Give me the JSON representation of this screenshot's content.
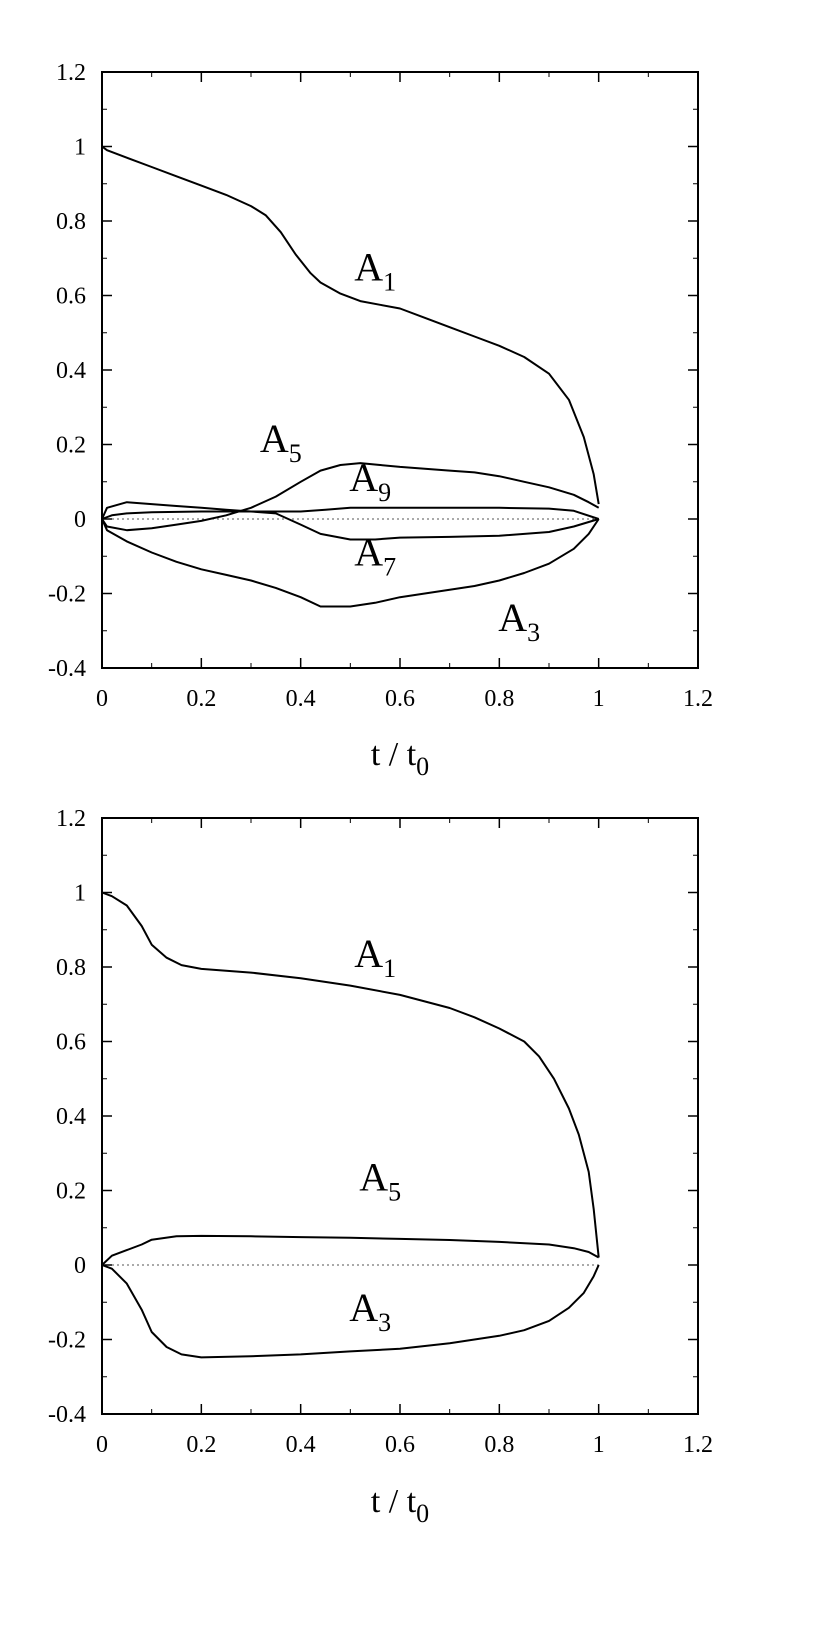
{
  "chart_data": [
    {
      "type": "line",
      "xlabel": "t / t",
      "xlabel_sub": "0",
      "xlim": [
        0,
        1.2
      ],
      "ylim": [
        -0.4,
        1.2
      ],
      "x_ticks": [
        "0",
        "0.2",
        "0.4",
        "0.6",
        "0.8",
        "1",
        "1.2"
      ],
      "y_ticks": [
        "1.2",
        "1",
        "0.8",
        "0.6",
        "0.4",
        "0.2",
        "0",
        "-0.2",
        "-0.4"
      ],
      "reference_line_y": 0,
      "series": [
        {
          "name": "A",
          "sub": "1",
          "points": [
            [
              0,
              1.0
            ],
            [
              0.01,
              0.99
            ],
            [
              0.05,
              0.97
            ],
            [
              0.1,
              0.945
            ],
            [
              0.15,
              0.92
            ],
            [
              0.2,
              0.895
            ],
            [
              0.25,
              0.87
            ],
            [
              0.3,
              0.84
            ],
            [
              0.33,
              0.815
            ],
            [
              0.36,
              0.77
            ],
            [
              0.39,
              0.71
            ],
            [
              0.42,
              0.66
            ],
            [
              0.44,
              0.635
            ],
            [
              0.48,
              0.605
            ],
            [
              0.52,
              0.585
            ],
            [
              0.56,
              0.575
            ],
            [
              0.6,
              0.565
            ],
            [
              0.65,
              0.54
            ],
            [
              0.7,
              0.515
            ],
            [
              0.75,
              0.49
            ],
            [
              0.8,
              0.465
            ],
            [
              0.85,
              0.435
            ],
            [
              0.9,
              0.39
            ],
            [
              0.94,
              0.32
            ],
            [
              0.97,
              0.22
            ],
            [
              0.99,
              0.12
            ],
            [
              1.0,
              0.04
            ]
          ]
        },
        {
          "name": "A",
          "sub": "3",
          "points": [
            [
              0,
              0.0
            ],
            [
              0.01,
              -0.03
            ],
            [
              0.05,
              -0.06
            ],
            [
              0.1,
              -0.09
            ],
            [
              0.15,
              -0.115
            ],
            [
              0.2,
              -0.135
            ],
            [
              0.25,
              -0.15
            ],
            [
              0.3,
              -0.165
            ],
            [
              0.35,
              -0.185
            ],
            [
              0.4,
              -0.21
            ],
            [
              0.44,
              -0.235
            ],
            [
              0.5,
              -0.235
            ],
            [
              0.55,
              -0.225
            ],
            [
              0.6,
              -0.21
            ],
            [
              0.65,
              -0.2
            ],
            [
              0.7,
              -0.19
            ],
            [
              0.75,
              -0.18
            ],
            [
              0.8,
              -0.165
            ],
            [
              0.85,
              -0.145
            ],
            [
              0.9,
              -0.12
            ],
            [
              0.95,
              -0.08
            ],
            [
              0.98,
              -0.04
            ],
            [
              1.0,
              0.0
            ]
          ]
        },
        {
          "name": "A",
          "sub": "5",
          "points": [
            [
              0,
              0.0
            ],
            [
              0.01,
              -0.02
            ],
            [
              0.05,
              -0.03
            ],
            [
              0.1,
              -0.025
            ],
            [
              0.15,
              -0.015
            ],
            [
              0.2,
              -0.005
            ],
            [
              0.25,
              0.01
            ],
            [
              0.3,
              0.03
            ],
            [
              0.35,
              0.06
            ],
            [
              0.4,
              0.1
            ],
            [
              0.44,
              0.13
            ],
            [
              0.48,
              0.145
            ],
            [
              0.52,
              0.15
            ],
            [
              0.56,
              0.145
            ],
            [
              0.6,
              0.14
            ],
            [
              0.65,
              0.135
            ],
            [
              0.7,
              0.13
            ],
            [
              0.75,
              0.125
            ],
            [
              0.8,
              0.115
            ],
            [
              0.85,
              0.1
            ],
            [
              0.9,
              0.085
            ],
            [
              0.95,
              0.065
            ],
            [
              0.98,
              0.045
            ],
            [
              1.0,
              0.03
            ]
          ]
        },
        {
          "name": "A",
          "sub": "7",
          "points": [
            [
              0,
              0.0
            ],
            [
              0.01,
              0.03
            ],
            [
              0.05,
              0.045
            ],
            [
              0.1,
              0.04
            ],
            [
              0.15,
              0.035
            ],
            [
              0.2,
              0.03
            ],
            [
              0.25,
              0.025
            ],
            [
              0.3,
              0.02
            ],
            [
              0.35,
              0.015
            ],
            [
              0.4,
              -0.015
            ],
            [
              0.44,
              -0.04
            ],
            [
              0.5,
              -0.055
            ],
            [
              0.55,
              -0.055
            ],
            [
              0.6,
              -0.05
            ],
            [
              0.7,
              -0.048
            ],
            [
              0.8,
              -0.045
            ],
            [
              0.9,
              -0.035
            ],
            [
              0.95,
              -0.02
            ],
            [
              1.0,
              0.0
            ]
          ]
        },
        {
          "name": "A",
          "sub": "9",
          "points": [
            [
              0,
              0.0
            ],
            [
              0.02,
              0.01
            ],
            [
              0.05,
              0.015
            ],
            [
              0.1,
              0.018
            ],
            [
              0.2,
              0.02
            ],
            [
              0.3,
              0.02
            ],
            [
              0.4,
              0.02
            ],
            [
              0.45,
              0.025
            ],
            [
              0.5,
              0.03
            ],
            [
              0.6,
              0.03
            ],
            [
              0.7,
              0.03
            ],
            [
              0.8,
              0.03
            ],
            [
              0.9,
              0.028
            ],
            [
              0.95,
              0.022
            ],
            [
              1.0,
              0.0
            ]
          ]
        }
      ],
      "annotations": [
        {
          "text": "A",
          "sub": "1",
          "x": 0.55,
          "y": 0.64
        },
        {
          "text": "A",
          "sub": "5",
          "x": 0.36,
          "y": 0.18
        },
        {
          "text": "A",
          "sub": "9",
          "x": 0.54,
          "y": 0.075
        },
        {
          "text": "A",
          "sub": "7",
          "x": 0.55,
          "y": -0.125
        },
        {
          "text": "A",
          "sub": "3",
          "x": 0.84,
          "y": -0.3
        }
      ]
    },
    {
      "type": "line",
      "xlabel": "t / t",
      "xlabel_sub": "0",
      "xlim": [
        0,
        1.2
      ],
      "ylim": [
        -0.4,
        1.2
      ],
      "x_ticks": [
        "0",
        "0.2",
        "0.4",
        "0.6",
        "0.8",
        "1",
        "1.2"
      ],
      "y_ticks": [
        "1.2",
        "1",
        "0.8",
        "0.6",
        "0.4",
        "0.2",
        "0",
        "-0.2",
        "-0.4"
      ],
      "reference_line_y": 0,
      "series": [
        {
          "name": "A",
          "sub": "1",
          "points": [
            [
              0,
              1.0
            ],
            [
              0.02,
              0.99
            ],
            [
              0.05,
              0.965
            ],
            [
              0.08,
              0.91
            ],
            [
              0.1,
              0.86
            ],
            [
              0.13,
              0.825
            ],
            [
              0.16,
              0.805
            ],
            [
              0.2,
              0.795
            ],
            [
              0.3,
              0.785
            ],
            [
              0.4,
              0.77
            ],
            [
              0.5,
              0.75
            ],
            [
              0.6,
              0.725
            ],
            [
              0.7,
              0.69
            ],
            [
              0.75,
              0.665
            ],
            [
              0.8,
              0.635
            ],
            [
              0.85,
              0.6
            ],
            [
              0.88,
              0.56
            ],
            [
              0.91,
              0.5
            ],
            [
              0.94,
              0.42
            ],
            [
              0.96,
              0.35
            ],
            [
              0.98,
              0.25
            ],
            [
              0.99,
              0.15
            ],
            [
              1.0,
              0.02
            ]
          ]
        },
        {
          "name": "A",
          "sub": "3",
          "points": [
            [
              0,
              0.0
            ],
            [
              0.02,
              -0.01
            ],
            [
              0.05,
              -0.05
            ],
            [
              0.08,
              -0.12
            ],
            [
              0.1,
              -0.18
            ],
            [
              0.13,
              -0.22
            ],
            [
              0.16,
              -0.24
            ],
            [
              0.2,
              -0.248
            ],
            [
              0.3,
              -0.245
            ],
            [
              0.4,
              -0.24
            ],
            [
              0.5,
              -0.232
            ],
            [
              0.6,
              -0.225
            ],
            [
              0.7,
              -0.21
            ],
            [
              0.8,
              -0.19
            ],
            [
              0.85,
              -0.175
            ],
            [
              0.9,
              -0.15
            ],
            [
              0.94,
              -0.115
            ],
            [
              0.97,
              -0.075
            ],
            [
              0.99,
              -0.03
            ],
            [
              1.0,
              0.0
            ]
          ]
        },
        {
          "name": "A",
          "sub": "5",
          "points": [
            [
              0,
              0.0
            ],
            [
              0.02,
              0.025
            ],
            [
              0.05,
              0.04
            ],
            [
              0.08,
              0.055
            ],
            [
              0.1,
              0.068
            ],
            [
              0.15,
              0.077
            ],
            [
              0.2,
              0.078
            ],
            [
              0.3,
              0.077
            ],
            [
              0.4,
              0.075
            ],
            [
              0.5,
              0.073
            ],
            [
              0.6,
              0.07
            ],
            [
              0.7,
              0.067
            ],
            [
              0.8,
              0.062
            ],
            [
              0.9,
              0.055
            ],
            [
              0.95,
              0.045
            ],
            [
              0.98,
              0.035
            ],
            [
              1.0,
              0.02
            ]
          ]
        }
      ],
      "annotations": [
        {
          "text": "A",
          "sub": "1",
          "x": 0.55,
          "y": 0.8
        },
        {
          "text": "A",
          "sub": "5",
          "x": 0.56,
          "y": 0.2
        },
        {
          "text": "A",
          "sub": "3",
          "x": 0.54,
          "y": -0.15
        }
      ]
    }
  ]
}
